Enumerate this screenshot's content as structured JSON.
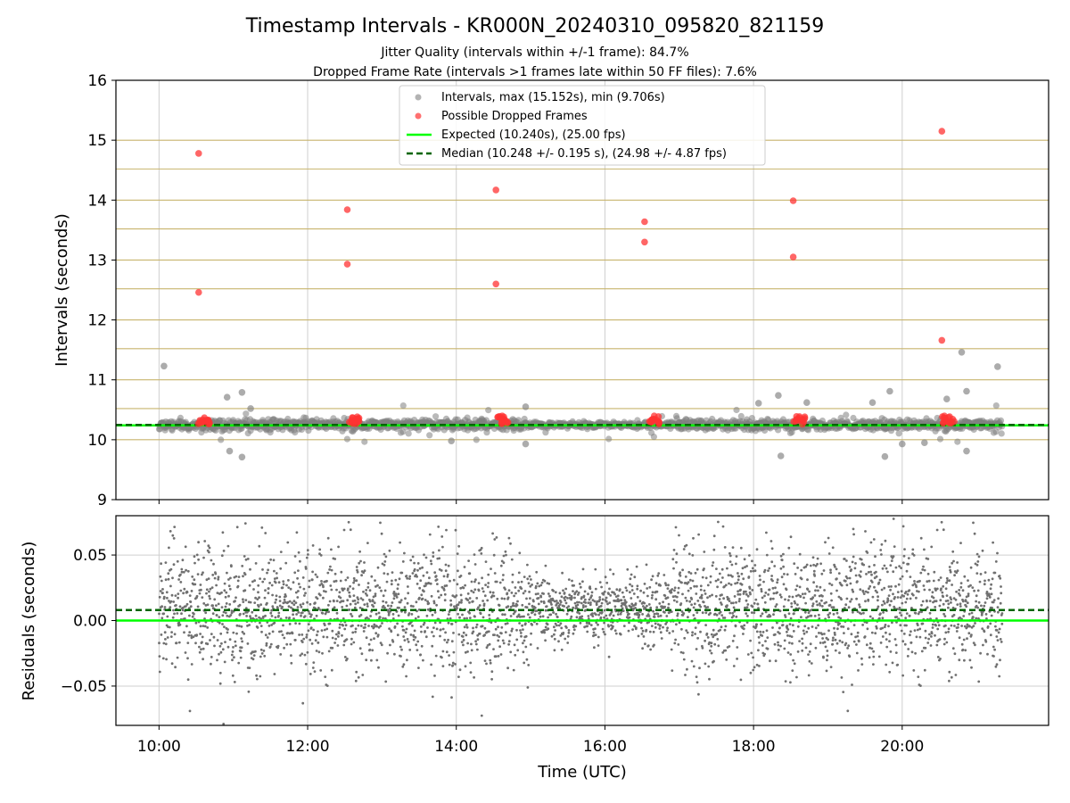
{
  "chart_data": [
    {
      "type": "scatter",
      "title": "Timestamp Intervals - KR000N_20240310_095820_821159",
      "subtitles": [
        "Jitter Quality (intervals within +/-1 frame): 84.7%",
        "Dropped Frame Rate (intervals >1 frames late within 50 FF files): 7.6%"
      ],
      "xlabel": "",
      "ylabel": "Intervals (seconds)",
      "x_range_hours": [
        9.42,
        21.97
      ],
      "ylim": [
        9,
        16
      ],
      "y_ticks": [
        "9",
        "10",
        "11",
        "12",
        "13",
        "14",
        "15",
        "16"
      ],
      "x_ticks": [
        "10:00",
        "12:00",
        "14:00",
        "16:00",
        "18:00",
        "20:00"
      ],
      "grid": true,
      "legend_position": "top-center",
      "legend": [
        "Intervals, max (15.152s), min (9.706s)",
        "Possible Dropped Frames",
        "Expected (10.240s), (25.00 fps)",
        "Median (10.248 +/- 0.195 s), (24.98 +/- 4.87 fps)"
      ],
      "expected_line": 10.24,
      "median_line": 10.248,
      "frame_bands": [
        10.0,
        10.24,
        10.52,
        11.0,
        11.52,
        12.0,
        12.52,
        13.0,
        13.52,
        14.0,
        14.52,
        15.0
      ],
      "interval_outliers": [
        {
          "x": "10:04",
          "y": 11.23
        },
        {
          "x": "10:55",
          "y": 10.71
        },
        {
          "x": "10:57",
          "y": 9.81
        },
        {
          "x": "11:07",
          "y": 10.79
        },
        {
          "x": "11:07",
          "y": 9.71
        },
        {
          "x": "11:14",
          "y": 10.52
        },
        {
          "x": "13:56",
          "y": 9.98
        },
        {
          "x": "14:56",
          "y": 10.55
        },
        {
          "x": "14:56",
          "y": 9.93
        },
        {
          "x": "18:04",
          "y": 10.61
        },
        {
          "x": "18:20",
          "y": 10.74
        },
        {
          "x": "18:22",
          "y": 9.73
        },
        {
          "x": "18:43",
          "y": 10.62
        },
        {
          "x": "19:36",
          "y": 10.62
        },
        {
          "x": "19:46",
          "y": 9.72
        },
        {
          "x": "19:50",
          "y": 10.81
        },
        {
          "x": "20:00",
          "y": 9.93
        },
        {
          "x": "20:18",
          "y": 9.95
        },
        {
          "x": "20:36",
          "y": 10.68
        },
        {
          "x": "20:48",
          "y": 11.46
        },
        {
          "x": "20:52",
          "y": 10.81
        },
        {
          "x": "20:52",
          "y": 9.81
        },
        {
          "x": "21:17",
          "y": 11.22
        }
      ],
      "dropped_frames": [
        {
          "x": "10:32",
          "y": 14.78
        },
        {
          "x": "10:32",
          "y": 12.46
        },
        {
          "x": "12:32",
          "y": 13.84
        },
        {
          "x": "12:32",
          "y": 12.93
        },
        {
          "x": "14:32",
          "y": 14.17
        },
        {
          "x": "14:32",
          "y": 12.6
        },
        {
          "x": "16:32",
          "y": 13.64
        },
        {
          "x": "16:32",
          "y": 13.3
        },
        {
          "x": "18:32",
          "y": 13.99
        },
        {
          "x": "18:32",
          "y": 13.05
        },
        {
          "x": "20:32",
          "y": 15.15
        },
        {
          "x": "20:32",
          "y": 11.66
        }
      ],
      "dropped_clusters_hours": [
        10.6,
        12.62,
        14.62,
        16.65,
        18.62,
        20.62
      ]
    },
    {
      "type": "scatter",
      "title": "",
      "xlabel": "Time (UTC)",
      "ylabel": "Residuals (seconds)",
      "x_range_hours": [
        9.42,
        21.97
      ],
      "ylim": [
        -0.08,
        0.08
      ],
      "y_ticks": [
        "−0.05",
        "0.00",
        "0.05"
      ],
      "x_ticks": [
        "10:00",
        "12:00",
        "14:00",
        "16:00",
        "18:00",
        "20:00"
      ],
      "grid": true,
      "expected_line": 0.0,
      "median_line": 0.008,
      "data_span_hours": [
        10.0,
        21.35
      ],
      "point_count": 3300,
      "residual_mean": 0.009,
      "residual_std": 0.024
    }
  ],
  "colors": {
    "interval_points": "#808080",
    "dropped_points": "#ff3333",
    "expected_line": "#00ff00",
    "median_line": "#006400",
    "frame_band_lines": "#c8b46e",
    "grid": "#cfcfcf",
    "residual_points": "#707070"
  }
}
